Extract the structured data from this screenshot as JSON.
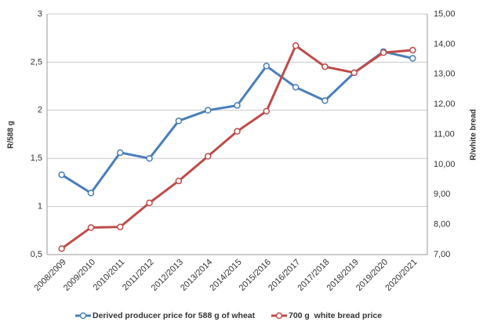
{
  "chart_data": {
    "type": "line",
    "categories": [
      "2008/2009",
      "2009/2010",
      "2010/2011",
      "2011/2012",
      "2012/2013",
      "2013/2014",
      "2014/2015",
      "2015/2016",
      "2016/2017",
      "2017/2018",
      "2018/2019",
      "2019/2020",
      "2020/2021"
    ],
    "series": [
      {
        "name": "Derived producer price for 588 g of wheat",
        "color": "#4a7ebb",
        "values": [
          1.33,
          1.14,
          1.56,
          1.5,
          1.89,
          2.0,
          2.05,
          2.46,
          2.24,
          2.1,
          2.39,
          2.61,
          2.54
        ]
      },
      {
        "name": "700 g  white bread price",
        "color": "#be4b48",
        "axis": "y2",
        "values": [
          7.2,
          7.9,
          7.92,
          8.72,
          9.45,
          10.27,
          11.1,
          11.77,
          13.95,
          13.25,
          13.05,
          13.72,
          13.8
        ]
      }
    ],
    "y_label": "R/588 g",
    "y2_label": "R/white bread",
    "ylim": [
      0.5,
      3
    ],
    "yticks": [
      {
        "value": 0.5,
        "label": "0,5"
      },
      1,
      {
        "value": 1.5,
        "label": "1,5"
      },
      2,
      {
        "value": 2.5,
        "label": "2,5"
      },
      3
    ],
    "y2lim": [
      7,
      15
    ],
    "y2ticks": [
      {
        "value": 7,
        "label": "7,00"
      },
      {
        "value": 8,
        "label": "8,00"
      },
      {
        "value": 9,
        "label": "9,00"
      },
      {
        "value": 10,
        "label": "10,00"
      },
      {
        "value": 11,
        "label": "11,00"
      },
      {
        "value": 12,
        "label": "12,00"
      },
      {
        "value": 13,
        "label": "13,00"
      },
      {
        "value": 14,
        "label": "14,00"
      },
      {
        "value": 15,
        "label": "15,00"
      }
    ],
    "grid": true,
    "legend": "bottom"
  }
}
